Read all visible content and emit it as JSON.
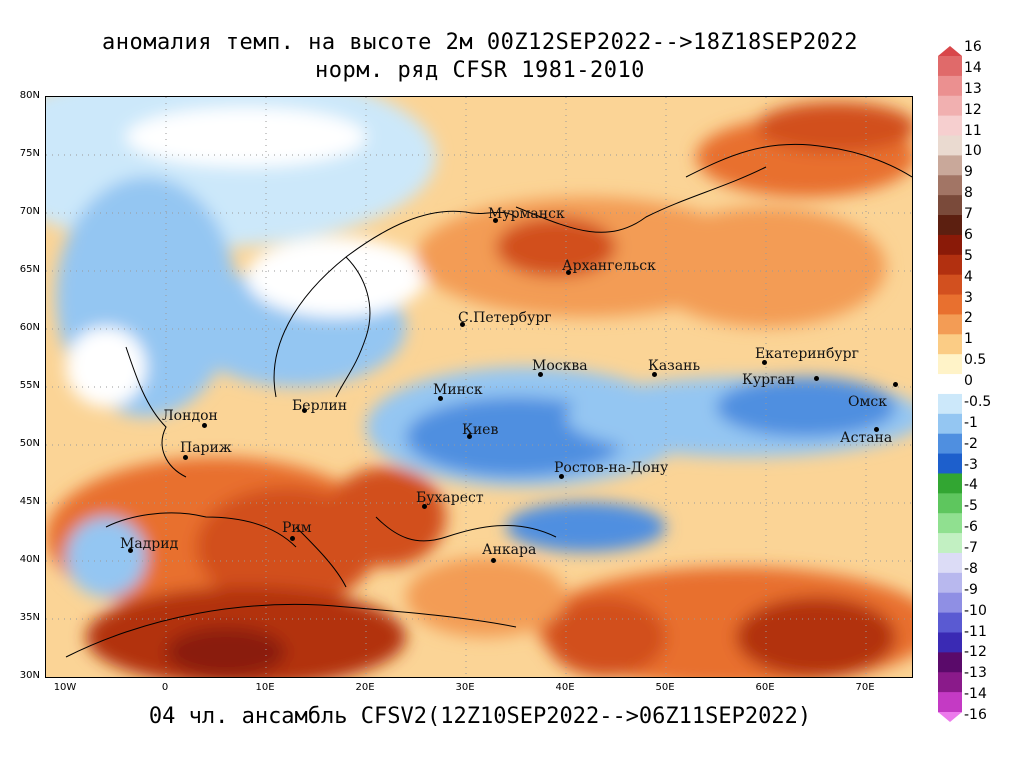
{
  "title_line1": "аномалия темп. на высоте 2м 00Z12SEP2022-->18Z18SEP2022",
  "title_line2": "норм. ряд CFSR 1981-2010",
  "bottom_title": "04 чл. ансамбль CFSV2(12Z10SEP2022-->06Z11SEP2022)",
  "y_ticks": [
    "80N",
    "75N",
    "70N",
    "65N",
    "60N",
    "55N",
    "50N",
    "45N",
    "40N",
    "35N",
    "30N"
  ],
  "x_ticks": [
    "10W",
    "0",
    "10E",
    "20E",
    "30E",
    "40E",
    "50E",
    "60E",
    "70E"
  ],
  "cities": [
    {
      "name": "Мурманск"
    },
    {
      "name": "Архангельск"
    },
    {
      "name": "С.Петербург"
    },
    {
      "name": "Москва"
    },
    {
      "name": "Казань"
    },
    {
      "name": "Екатеринбург"
    },
    {
      "name": "Курган"
    },
    {
      "name": "Омск"
    },
    {
      "name": "Астана"
    },
    {
      "name": "Минск"
    },
    {
      "name": "Берлин"
    },
    {
      "name": "Лондон"
    },
    {
      "name": "Париж"
    },
    {
      "name": "Киев"
    },
    {
      "name": "Ростов-на-Дону"
    },
    {
      "name": "Бухарест"
    },
    {
      "name": "Мадрид"
    },
    {
      "name": "Рим"
    },
    {
      "name": "Анкара"
    }
  ],
  "colorbar": {
    "labels": [
      "16",
      "14",
      "13",
      "12",
      "11",
      "10",
      "9",
      "8",
      "7",
      "6",
      "5",
      "4",
      "3",
      "2",
      "1",
      "0.5",
      "0",
      "-0.5",
      "-1",
      "-2",
      "-3",
      "-4",
      "-5",
      "-6",
      "-7",
      "-8",
      "-9",
      "-10",
      "-11",
      "-12",
      "-13",
      "-14",
      "-16"
    ],
    "colors": [
      "#d8474a",
      "#e06a6a",
      "#eb9090",
      "#f1b0b0",
      "#f6cfcf",
      "#eadad0",
      "#c9a89a",
      "#a27565",
      "#7a4a3a",
      "#5c1f10",
      "#8a1a08",
      "#b23010",
      "#d2501f",
      "#e8702f",
      "#f39c55",
      "#fbcc85",
      "#fff3c8",
      "#ffffff",
      "#cce8fa",
      "#94c6f2",
      "#4f8fe0",
      "#1d5fcc",
      "#32a632",
      "#5ec65e",
      "#90e090",
      "#c2f0c2",
      "#dcdcf6",
      "#b8b8ee",
      "#8f8fe4",
      "#5a5ad2",
      "#3a2ab4",
      "#5a0a6a",
      "#8a1a8a",
      "#c43ac4",
      "#ec7aec"
    ]
  }
}
